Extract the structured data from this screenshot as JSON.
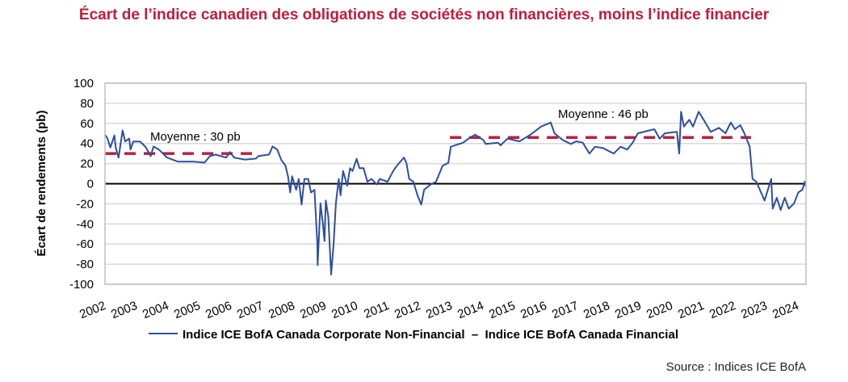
{
  "chart_data": {
    "type": "line",
    "title": "Écart de l’indice canadien des obligations de sociétés non financières, moins l’indice financier",
    "ylabel": "Écart de rendements (pb)",
    "xlabel": "",
    "ylim": [
      -100,
      100
    ],
    "yticks": [
      100,
      80,
      60,
      40,
      20,
      0,
      -20,
      -40,
      -60,
      -80,
      -100
    ],
    "xlim": [
      2002,
      2024.3
    ],
    "xticks": [
      "2002",
      "2003",
      "2004",
      "2005",
      "2006",
      "2007",
      "2008",
      "2009",
      "2010",
      "2011",
      "2012",
      "2013",
      "2014",
      "2015",
      "2016",
      "2017",
      "2018",
      "2019",
      "2020",
      "2021",
      "2022",
      "2023",
      "2024"
    ],
    "grid": true,
    "legend": {
      "position": "bottom",
      "entries": [
        "Indice ICE BofA Canada Corporate Non-Financial  –  Indice ICE BofA Canada Financial"
      ]
    },
    "series": [
      {
        "name": "Indice ICE BofA Canada Corporate Non-Financial – Indice ICE BofA Canada Financial",
        "color": "#2e4f9e",
        "points": [
          [
            2002.0,
            48.8
          ],
          [
            2002.08,
            45
          ],
          [
            2002.17,
            36
          ],
          [
            2002.3,
            48
          ],
          [
            2002.34,
            36
          ],
          [
            2002.43,
            26
          ],
          [
            2002.56,
            53
          ],
          [
            2002.64,
            42
          ],
          [
            2002.77,
            45
          ],
          [
            2002.81,
            34
          ],
          [
            2002.9,
            42
          ],
          [
            2003.11,
            42
          ],
          [
            2003.28,
            37
          ],
          [
            2003.45,
            27.5
          ],
          [
            2003.54,
            37
          ],
          [
            2003.71,
            34
          ],
          [
            2003.97,
            26
          ],
          [
            2004.31,
            22
          ],
          [
            2004.82,
            22
          ],
          [
            2005.16,
            21
          ],
          [
            2005.33,
            27.5
          ],
          [
            2005.51,
            29
          ],
          [
            2005.85,
            26
          ],
          [
            2005.97,
            31.5
          ],
          [
            2006.1,
            26
          ],
          [
            2006.44,
            24
          ],
          [
            2006.79,
            25
          ],
          [
            2006.87,
            27.5
          ],
          [
            2007.21,
            29
          ],
          [
            2007.32,
            37
          ],
          [
            2007.47,
            34
          ],
          [
            2007.6,
            23.5
          ],
          [
            2007.73,
            18
          ],
          [
            2007.81,
            7.4
          ],
          [
            2007.88,
            -8.7
          ],
          [
            2007.94,
            7.4
          ],
          [
            2008.07,
            -6
          ],
          [
            2008.15,
            4.7
          ],
          [
            2008.24,
            -20.7
          ],
          [
            2008.33,
            4.7
          ],
          [
            2008.45,
            4.7
          ],
          [
            2008.54,
            -8.7
          ],
          [
            2008.65,
            -6
          ],
          [
            2008.74,
            -59.6
          ],
          [
            2008.75,
            -81
          ],
          [
            2008.84,
            -19.4
          ],
          [
            2008.92,
            -40.8
          ],
          [
            2008.97,
            -57
          ],
          [
            2009.01,
            -16.7
          ],
          [
            2009.09,
            -32.8
          ],
          [
            2009.18,
            -90.4
          ],
          [
            2009.26,
            -59.6
          ],
          [
            2009.33,
            -19.4
          ],
          [
            2009.42,
            4.7
          ],
          [
            2009.48,
            -11.4
          ],
          [
            2009.56,
            12.7
          ],
          [
            2009.69,
            -2
          ],
          [
            2009.78,
            15.4
          ],
          [
            2009.86,
            12.7
          ],
          [
            2009.99,
            24.7
          ],
          [
            2010.08,
            15.4
          ],
          [
            2010.21,
            15.4
          ],
          [
            2010.33,
            2
          ],
          [
            2010.46,
            4.7
          ],
          [
            2010.63,
            -0.7
          ],
          [
            2010.72,
            4.7
          ],
          [
            2010.97,
            2
          ],
          [
            2011.15,
            12.7
          ],
          [
            2011.27,
            18
          ],
          [
            2011.49,
            26
          ],
          [
            2011.57,
            20.7
          ],
          [
            2011.66,
            4.7
          ],
          [
            2011.79,
            2
          ],
          [
            2011.92,
            -11.4
          ],
          [
            2012.04,
            -20.7
          ],
          [
            2012.13,
            -6
          ],
          [
            2012.34,
            -0.7
          ],
          [
            2012.51,
            2
          ],
          [
            2012.72,
            18
          ],
          [
            2012.9,
            20.7
          ],
          [
            2012.98,
            36.8
          ],
          [
            2013.37,
            40.8
          ],
          [
            2013.54,
            44.8
          ],
          [
            2013.75,
            48.8
          ],
          [
            2014.01,
            43.5
          ],
          [
            2014.09,
            39.5
          ],
          [
            2014.48,
            40.8
          ],
          [
            2014.56,
            38.2
          ],
          [
            2014.78,
            44.8
          ],
          [
            2015.16,
            42.2
          ],
          [
            2015.51,
            48.8
          ],
          [
            2015.85,
            56.9
          ],
          [
            2016.15,
            60.9
          ],
          [
            2016.27,
            50.2
          ],
          [
            2016.53,
            43.5
          ],
          [
            2016.79,
            39.5
          ],
          [
            2016.96,
            42.2
          ],
          [
            2017.17,
            40.8
          ],
          [
            2017.38,
            30
          ],
          [
            2017.56,
            36.8
          ],
          [
            2017.81,
            35.5
          ],
          [
            2018.15,
            30
          ],
          [
            2018.37,
            36.8
          ],
          [
            2018.58,
            34
          ],
          [
            2018.75,
            40.8
          ],
          [
            2018.92,
            50.2
          ],
          [
            2019.44,
            54.2
          ],
          [
            2019.61,
            44.8
          ],
          [
            2019.78,
            50.2
          ],
          [
            2020.16,
            51.6
          ],
          [
            2020.23,
            30
          ],
          [
            2020.29,
            71.6
          ],
          [
            2020.38,
            56.9
          ],
          [
            2020.55,
            63.6
          ],
          [
            2020.67,
            56.9
          ],
          [
            2020.85,
            71.6
          ],
          [
            2021.06,
            60.9
          ],
          [
            2021.23,
            51.6
          ],
          [
            2021.49,
            55.6
          ],
          [
            2021.7,
            50.2
          ],
          [
            2021.87,
            60.9
          ],
          [
            2022.0,
            54.2
          ],
          [
            2022.17,
            58.2
          ],
          [
            2022.3,
            50.2
          ],
          [
            2022.47,
            36.8
          ],
          [
            2022.56,
            4.7
          ],
          [
            2022.68,
            2
          ],
          [
            2022.94,
            -16.7
          ],
          [
            2023.15,
            4.7
          ],
          [
            2023.2,
            -24.8
          ],
          [
            2023.33,
            -14
          ],
          [
            2023.45,
            -26.1
          ],
          [
            2023.58,
            -14
          ],
          [
            2023.71,
            -24.8
          ],
          [
            2023.88,
            -19.4
          ],
          [
            2024.01,
            -8.7
          ],
          [
            2024.14,
            -6
          ],
          [
            2024.22,
            2
          ],
          [
            2024.26,
            -3.4
          ]
        ]
      }
    ],
    "averages": [
      {
        "label": "Moyenne : 30 pb",
        "value": 30,
        "from": 2002.0,
        "to": 2006.69,
        "color": "#be1e3c"
      },
      {
        "label": "Moyenne : 46 pb",
        "value": 46,
        "from": 2012.95,
        "to": 2022.51,
        "color": "#be1e3c"
      }
    ],
    "source": "Source : Indices ICE BofA"
  }
}
